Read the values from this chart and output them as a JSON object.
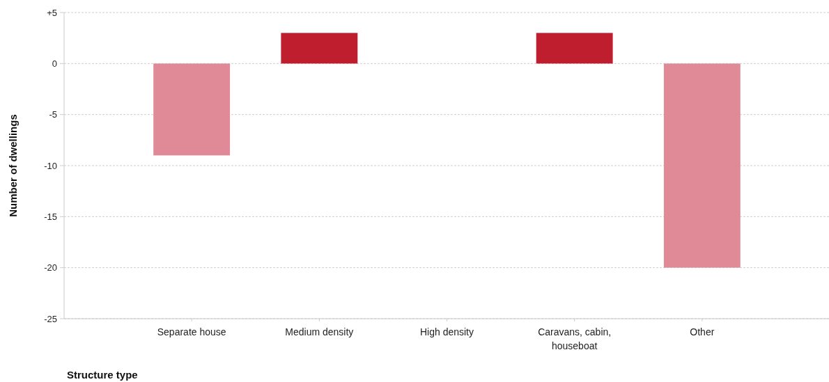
{
  "chart_data": {
    "type": "bar",
    "xlabel": "Structure type",
    "ylabel": "Number of dwellings",
    "categories": [
      "Separate house",
      "Medium density",
      "High density",
      "Caravans, cabin, houseboat",
      "Other"
    ],
    "values": [
      -9,
      3,
      0,
      3,
      -20
    ],
    "colors": [
      "#e08a98",
      "#be1e2d",
      "#be1e2d",
      "#be1e2d",
      "#e08a98"
    ],
    "ylim": [
      -25,
      5
    ],
    "yticks": [
      {
        "value": 5,
        "label": "+5"
      },
      0,
      -5,
      -10,
      -15,
      -20,
      -25
    ],
    "grid": "y"
  }
}
